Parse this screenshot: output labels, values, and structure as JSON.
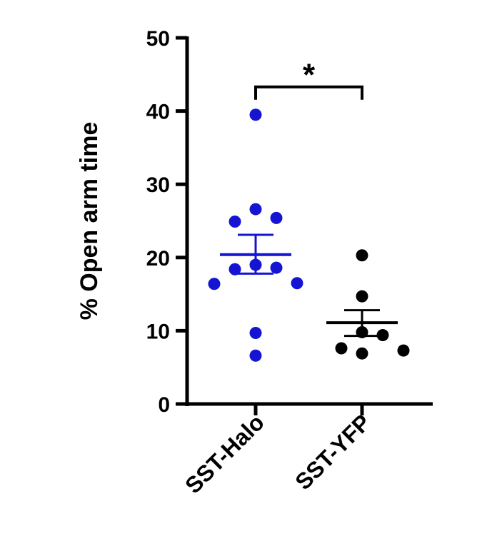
{
  "chart_data": {
    "type": "scatter",
    "title": "",
    "xlabel": "",
    "ylabel": "% Open arm time",
    "ylim": [
      0,
      50
    ],
    "yticks": [
      0,
      10,
      20,
      30,
      40,
      50
    ],
    "categories": [
      "SST-Halo",
      "SST-YFP"
    ],
    "grid": false,
    "legend": "none",
    "series": [
      {
        "color": "#1414d2",
        "points": [
          39.5,
          26.6,
          25.4,
          24.9,
          19.0,
          18.6,
          18.4,
          16.5,
          16.4,
          9.7,
          6.6
        ],
        "mean": 20.4,
        "sem_low": 17.8,
        "sem_high": 23.1
      },
      {
        "color": "#000000",
        "points": [
          20.3,
          14.7,
          9.8,
          9.4,
          7.6,
          7.3,
          6.9
        ],
        "mean": 11.1,
        "sem_low": 9.3,
        "sem_high": 12.8
      }
    ],
    "annotation": {
      "text": "*",
      "between": [
        0,
        1
      ],
      "y": 43.3
    }
  }
}
